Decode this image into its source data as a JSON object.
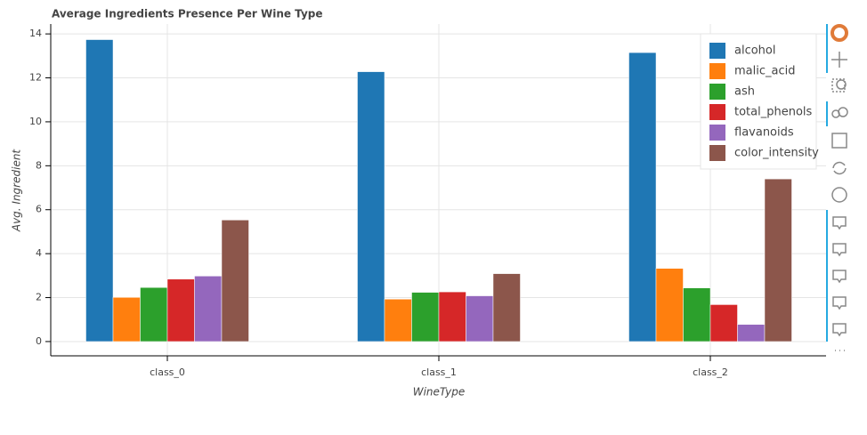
{
  "chart_data": {
    "type": "bar",
    "title": "Average Ingredients Presence Per Wine Type",
    "x_label": "WineType",
    "y_label": "Avg. Ingredient",
    "categories": [
      "class_0",
      "class_1",
      "class_2"
    ],
    "series": [
      {
        "name": "alcohol",
        "color": "#1f77b4",
        "values": [
          13.74,
          12.28,
          13.15
        ]
      },
      {
        "name": "malic_acid",
        "color": "#ff7f0e",
        "values": [
          2.01,
          1.93,
          3.33
        ]
      },
      {
        "name": "ash",
        "color": "#2ca02c",
        "values": [
          2.46,
          2.24,
          2.44
        ]
      },
      {
        "name": "total_phenols",
        "color": "#d62728",
        "values": [
          2.84,
          2.26,
          1.68
        ]
      },
      {
        "name": "flavanoids",
        "color": "#9467bd",
        "values": [
          2.98,
          2.08,
          0.78
        ]
      },
      {
        "name": "color_intensity",
        "color": "#8c564b",
        "values": [
          5.53,
          3.09,
          7.4
        ]
      }
    ],
    "ylim": [
      -0.65,
      14.45
    ],
    "yticks": [
      0,
      2,
      4,
      6,
      8,
      10,
      12,
      14
    ],
    "grid": true,
    "legend": "top-right"
  }
}
